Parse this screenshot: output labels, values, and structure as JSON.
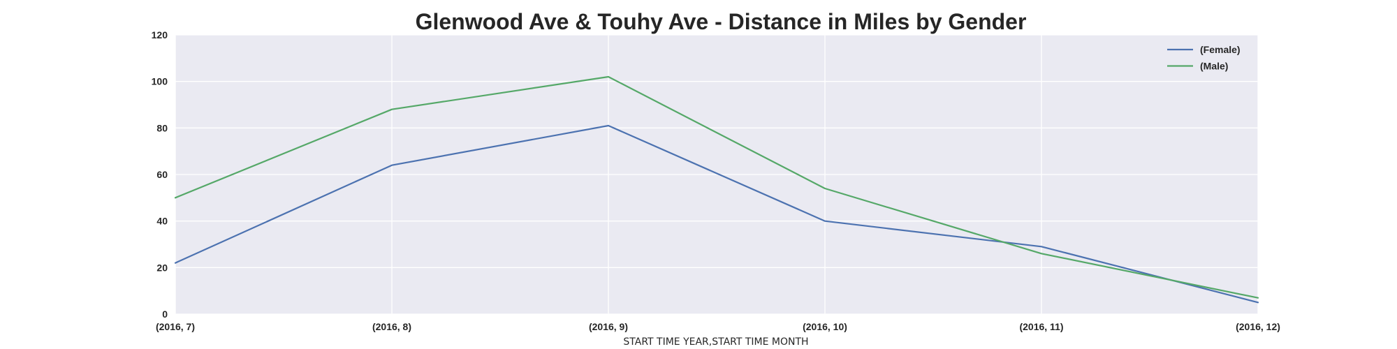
{
  "chart_data": {
    "type": "line",
    "title": "Glenwood Ave & Touhy Ave - Distance in Miles by Gender",
    "xlabel": "START TIME YEAR,START TIME MONTH",
    "ylabel": "",
    "categories": [
      "(2016, 7)",
      "(2016, 8)",
      "(2016, 9)",
      "(2016, 10)",
      "(2016, 11)",
      "(2016, 12)"
    ],
    "ylim": [
      0,
      120
    ],
    "yticks": [
      "0",
      "20",
      "40",
      "60",
      "80",
      "100",
      "120"
    ],
    "grid": true,
    "legend_position": "top-right",
    "background_color": "#eaeaf2",
    "grid_color": "#ffffff",
    "series": [
      {
        "name": "(Female)",
        "color": "#4c72b0",
        "values": [
          22,
          64,
          81,
          40,
          29,
          5
        ]
      },
      {
        "name": "(Male)",
        "color": "#55a868",
        "values": [
          50,
          88,
          102,
          54,
          26,
          7
        ]
      }
    ]
  }
}
